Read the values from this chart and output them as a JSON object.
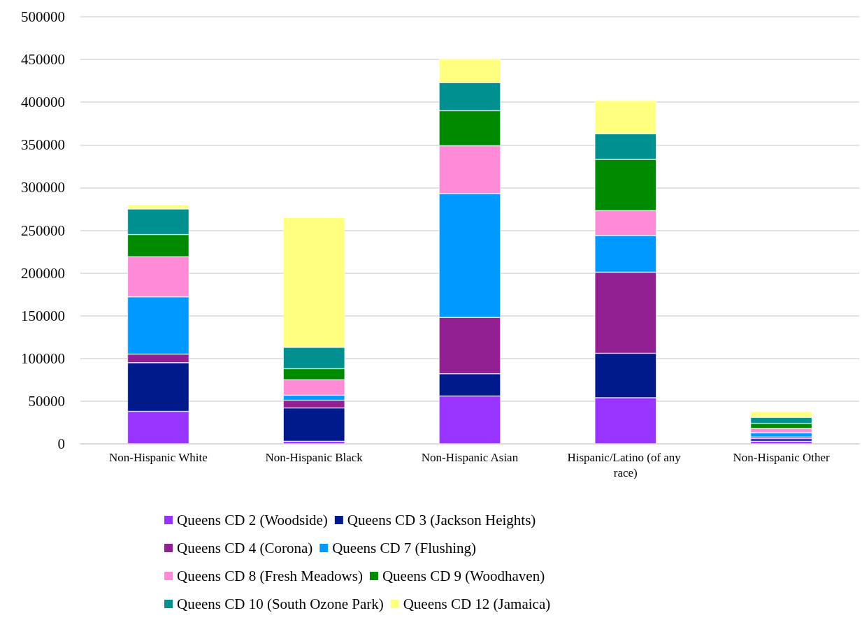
{
  "chart_data": {
    "type": "bar",
    "stacked": true,
    "categories": [
      "Non-Hispanic White",
      "Non-Hispanic Black",
      "Non-Hispanic Asian",
      "Hispanic/Latino (of any race)",
      "Non-Hispanic Other"
    ],
    "series": [
      {
        "name": "Queens CD 2 (Woodside)",
        "color": "#9933ff",
        "values": [
          38000,
          3000,
          56000,
          54000,
          3000
        ]
      },
      {
        "name": "Queens CD 3 (Jackson Heights)",
        "color": "#001a8c",
        "values": [
          57000,
          39000,
          26000,
          52000,
          3000
        ]
      },
      {
        "name": "Queens CD 4 (Corona)",
        "color": "#922092",
        "values": [
          10000,
          9000,
          66000,
          95000,
          2000
        ]
      },
      {
        "name": "Queens CD 7 (Flushing)",
        "color": "#0099ff",
        "values": [
          67000,
          6000,
          145000,
          43000,
          5000
        ]
      },
      {
        "name": "Queens CD 8 (Fresh Meadows)",
        "color": "#ff8ad8",
        "values": [
          47000,
          18000,
          56000,
          29000,
          5000
        ]
      },
      {
        "name": "Queens CD 9 (Woodhaven)",
        "color": "#008a00",
        "values": [
          26000,
          13000,
          41000,
          60000,
          6000
        ]
      },
      {
        "name": "Queens CD 10 (South Ozone Park)",
        "color": "#009090",
        "values": [
          30000,
          25000,
          33000,
          30000,
          7000
        ]
      },
      {
        "name": "Queens CD 12 (Jamaica)",
        "color": "#ffff80",
        "values": [
          5000,
          152000,
          28000,
          39000,
          7000
        ]
      }
    ],
    "ylim": [
      0,
      500000
    ],
    "yticks": [
      0,
      50000,
      100000,
      150000,
      200000,
      250000,
      300000,
      350000,
      400000,
      450000,
      500000
    ],
    "grid": "y",
    "legend": "bottom"
  }
}
